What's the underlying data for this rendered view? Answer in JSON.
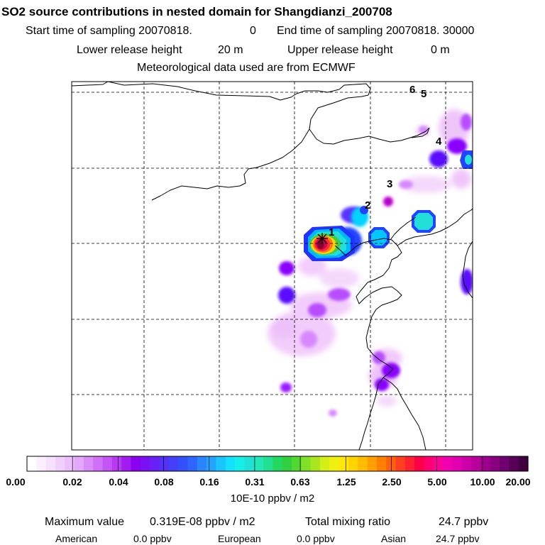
{
  "header": {
    "title": "SO2 source contributions in nested domain for Shangdianzi_200708",
    "start_label": "Start time of sampling 20070818.",
    "start_value": "0",
    "end_label": "End time of sampling 20070818. 30000",
    "lower_label": "Lower release height",
    "lower_value": "20 m",
    "upper_label": "Upper release height",
    "upper_value": "0 m",
    "met_label": "Meteorological data used are from ECMWF"
  },
  "map": {
    "markers": [
      {
        "label": "1"
      },
      {
        "label": "2"
      },
      {
        "label": "3"
      },
      {
        "label": "4"
      },
      {
        "label": "5"
      },
      {
        "label": "6"
      }
    ],
    "colors": {
      "dark_red": "#8b0033",
      "red": "#ff2a3a",
      "magenta": "#ff00aa",
      "yellow": "#ffd400",
      "green": "#44cc44",
      "cyan": "#22e0d8",
      "blue": "#2244ff",
      "purple": "#8a00ff",
      "violet": "#b84dff",
      "lavender": "#e3a6ff",
      "pink": "#f3d2fb"
    }
  },
  "colorbar": {
    "tick_labels": [
      "0.00",
      "0.02",
      "0.04",
      "0.08",
      "0.16",
      "0.31",
      "0.63",
      "1.25",
      "2.50",
      "5.00",
      "10.00",
      "20.00"
    ],
    "unit": "10E-10 ppbv / m2"
  },
  "stats": {
    "max_label": "Maximum value",
    "max_value": "0.319E-08 ppbv / m2",
    "total_label": "Total mixing ratio",
    "total_value": "24.7 ppbv",
    "american_label": "American",
    "american_value": "0.0 ppbv",
    "european_label": "European",
    "european_value": "0.0 ppbv",
    "asian_label": "Asian",
    "asian_value": "24.7 ppbv"
  }
}
